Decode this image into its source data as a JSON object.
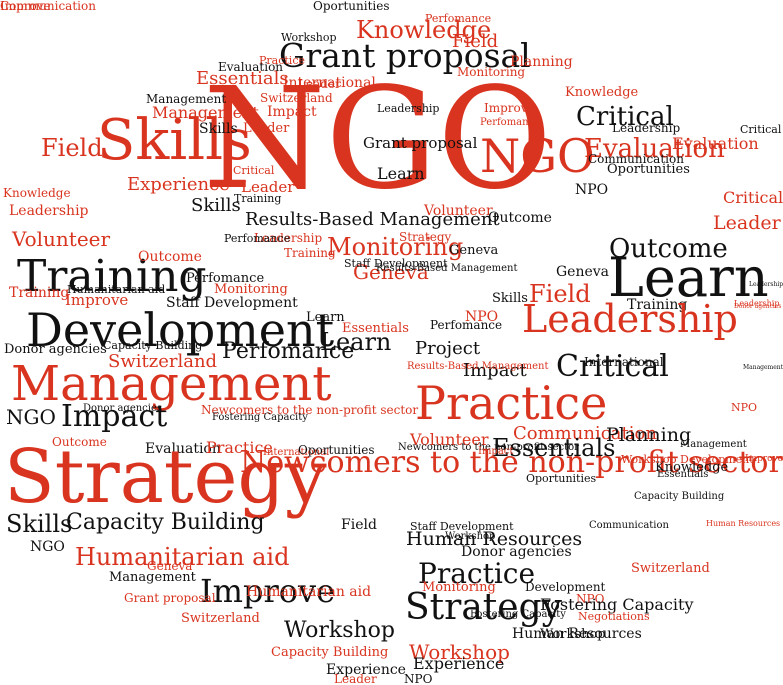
{
  "colors": {
    "red": "#d9341f",
    "black": "#111111",
    "background": "#ffffff"
  },
  "words": [
    {
      "text": "NGO",
      "color": "red"
    },
    {
      "text": "Skills",
      "color": "red"
    },
    {
      "text": "Grant proposal",
      "color": "black"
    },
    {
      "text": "Knowledge",
      "color": "red"
    },
    {
      "text": "Field",
      "color": "red"
    },
    {
      "text": "Essentials",
      "color": "red"
    },
    {
      "text": "International",
      "color": "red"
    },
    {
      "text": "Planning",
      "color": "red"
    },
    {
      "text": "Leader",
      "color": "red"
    },
    {
      "text": "NGO",
      "color": "red"
    },
    {
      "text": "Critical",
      "color": "black"
    },
    {
      "text": "Evaluation",
      "color": "red"
    },
    {
      "text": "Grant proposal",
      "color": "black"
    },
    {
      "text": "Learn",
      "color": "black"
    },
    {
      "text": "Leadership",
      "color": "black"
    },
    {
      "text": "Management",
      "color": "black"
    },
    {
      "text": "Management",
      "color": "red"
    },
    {
      "text": "Impact",
      "color": "red"
    },
    {
      "text": "Field",
      "color": "red"
    },
    {
      "text": "Skills",
      "color": "black"
    },
    {
      "text": "Experience",
      "color": "red"
    },
    {
      "text": "Leader",
      "color": "red"
    },
    {
      "text": "Skills",
      "color": "black"
    },
    {
      "text": "Knowledge",
      "color": "red"
    },
    {
      "text": "Leadership",
      "color": "red"
    },
    {
      "text": "Volunteer",
      "color": "red"
    },
    {
      "text": "Training",
      "color": "black"
    },
    {
      "text": "Outcome",
      "color": "red"
    },
    {
      "text": "Perfomance",
      "color": "black"
    },
    {
      "text": "Monitoring",
      "color": "red"
    },
    {
      "text": "Training",
      "color": "red"
    },
    {
      "text": "Improve",
      "color": "red"
    },
    {
      "text": "Humanitarian aid",
      "color": "black"
    },
    {
      "text": "Staff Development",
      "color": "black"
    },
    {
      "text": "Development",
      "color": "black"
    },
    {
      "text": "Learn",
      "color": "black"
    },
    {
      "text": "Essentials",
      "color": "red"
    },
    {
      "text": "Learn",
      "color": "black"
    },
    {
      "text": "Donor agencies",
      "color": "black"
    },
    {
      "text": "Capacity Building",
      "color": "black"
    },
    {
      "text": "Switzerland",
      "color": "red"
    },
    {
      "text": "Perfomance",
      "color": "black"
    },
    {
      "text": "Management",
      "color": "red"
    },
    {
      "text": "NGO",
      "color": "black"
    },
    {
      "text": "Impact",
      "color": "black"
    },
    {
      "text": "Donor agencies",
      "color": "black"
    },
    {
      "text": "Newcomers to the non-profit sector",
      "color": "red"
    },
    {
      "text": "Fostering Capacity",
      "color": "black"
    },
    {
      "text": "Outcome",
      "color": "red"
    },
    {
      "text": "Evaluation",
      "color": "black"
    },
    {
      "text": "Practice",
      "color": "red"
    },
    {
      "text": "International",
      "color": "red"
    },
    {
      "text": "Oportunities",
      "color": "black"
    },
    {
      "text": "Strategy",
      "color": "red"
    },
    {
      "text": "Skills",
      "color": "black"
    },
    {
      "text": "Capacity Building",
      "color": "black"
    },
    {
      "text": "NGO",
      "color": "black"
    },
    {
      "text": "Humanitarian aid",
      "color": "red"
    },
    {
      "text": "Field",
      "color": "black"
    },
    {
      "text": "Geneva",
      "color": "red"
    },
    {
      "text": "Management",
      "color": "black"
    },
    {
      "text": "Improve",
      "color": "black"
    },
    {
      "text": "Grant proposal",
      "color": "red"
    },
    {
      "text": "Humanitarian aid",
      "color": "red"
    },
    {
      "text": "Switzerland",
      "color": "red"
    },
    {
      "text": "Workshop",
      "color": "black"
    },
    {
      "text": "Capacity Building",
      "color": "red"
    },
    {
      "text": "Experience",
      "color": "black"
    },
    {
      "text": "Leader",
      "color": "red"
    },
    {
      "text": "Oportunities",
      "color": "black"
    },
    {
      "text": "Perfomance",
      "color": "red"
    },
    {
      "text": "Workshop",
      "color": "black"
    },
    {
      "text": "Practice",
      "color": "red"
    },
    {
      "text": "Evaluation",
      "color": "black"
    },
    {
      "text": "Monitoring",
      "color": "red"
    },
    {
      "text": "Leader",
      "color": "red"
    },
    {
      "text": "Improve",
      "color": "red"
    },
    {
      "text": "Switzerland",
      "color": "red"
    },
    {
      "text": "Critical",
      "color": "red"
    },
    {
      "text": "Training",
      "color": "black"
    },
    {
      "text": "Results-Based Management",
      "color": "black"
    },
    {
      "text": "Volunteer",
      "color": "red"
    },
    {
      "text": "Outcome",
      "color": "black"
    },
    {
      "text": "Monitoring",
      "color": "red"
    },
    {
      "text": "Geneva",
      "color": "red"
    },
    {
      "text": "Strategy",
      "color": "red"
    },
    {
      "text": "Geneva",
      "color": "black"
    },
    {
      "text": "Leadership",
      "color": "red"
    },
    {
      "text": "Training",
      "color": "red"
    },
    {
      "text": "Perfomance",
      "color": "black"
    },
    {
      "text": "Results-Based Management",
      "color": "black"
    },
    {
      "text": "Staff Development",
      "color": "black"
    },
    {
      "text": "Critical",
      "color": "black"
    },
    {
      "text": "Evaluation",
      "color": "red"
    },
    {
      "text": "Communication",
      "color": "black"
    },
    {
      "text": "Leadership",
      "color": "black"
    },
    {
      "text": "Knowledge",
      "color": "red"
    },
    {
      "text": "Oportunities",
      "color": "black"
    },
    {
      "text": "NPO",
      "color": "black"
    },
    {
      "text": "Critical",
      "color": "red"
    },
    {
      "text": "Leader",
      "color": "red"
    },
    {
      "text": "Outcome",
      "color": "black"
    },
    {
      "text": "Learn",
      "color": "black"
    },
    {
      "text": "Geneva",
      "color": "black"
    },
    {
      "text": "Field",
      "color": "red"
    },
    {
      "text": "Skills",
      "color": "black"
    },
    {
      "text": "Training",
      "color": "black"
    },
    {
      "text": "Leadership",
      "color": "red"
    },
    {
      "text": "NPO",
      "color": "red"
    },
    {
      "text": "Perfomance",
      "color": "black"
    },
    {
      "text": "Project",
      "color": "black"
    },
    {
      "text": "International",
      "color": "black"
    },
    {
      "text": "Impact",
      "color": "black"
    },
    {
      "text": "Critical",
      "color": "black"
    },
    {
      "text": "Management",
      "color": "black"
    },
    {
      "text": "Practice",
      "color": "red"
    },
    {
      "text": "Volunteer",
      "color": "red"
    },
    {
      "text": "Communication",
      "color": "red"
    },
    {
      "text": "Planning",
      "color": "black"
    },
    {
      "text": "Essentials",
      "color": "black"
    },
    {
      "text": "Newcomers to the non-profit sector",
      "color": "red"
    },
    {
      "text": "Human Resources",
      "color": "black"
    },
    {
      "text": "Donor agencies",
      "color": "black"
    },
    {
      "text": "Practice",
      "color": "black"
    },
    {
      "text": "Development",
      "color": "black"
    },
    {
      "text": "NPO",
      "color": "red"
    },
    {
      "text": "Strategy",
      "color": "black"
    },
    {
      "text": "Fostering Capacity",
      "color": "black"
    },
    {
      "text": "Negotiations",
      "color": "red"
    },
    {
      "text": "Workshop",
      "color": "red"
    },
    {
      "text": "Experience",
      "color": "black"
    },
    {
      "text": "NPO",
      "color": "black"
    },
    {
      "text": "Workshop",
      "color": "black"
    },
    {
      "text": "Human Resources",
      "color": "black"
    },
    {
      "text": "Monitoring",
      "color": "red"
    },
    {
      "text": "Switzerland",
      "color": "red"
    },
    {
      "text": "NPO",
      "color": "red"
    },
    {
      "text": "Improve",
      "color": "red"
    },
    {
      "text": "Knowledge",
      "color": "black"
    },
    {
      "text": "Workshop Development",
      "color": "red"
    },
    {
      "text": "Staff Development",
      "color": "black"
    },
    {
      "text": "Communication",
      "color": "black"
    },
    {
      "text": "Oportunities",
      "color": "black"
    },
    {
      "text": "Newcomers to the non-profit sector",
      "color": "black"
    },
    {
      "text": "Workshop",
      "color": "black"
    },
    {
      "text": "Fostering Capacity",
      "color": "black"
    },
    {
      "text": "Human Resources",
      "color": "red"
    },
    {
      "text": "Impact",
      "color": "red"
    },
    {
      "text": "Leadership",
      "color": "black"
    },
    {
      "text": "Capacity Building",
      "color": "black"
    },
    {
      "text": "Perfomance",
      "color": "red"
    },
    {
      "text": "Management",
      "color": "black"
    },
    {
      "text": "Results-Based Management",
      "color": "red"
    },
    {
      "text": "Essentials",
      "color": "black"
    },
    {
      "text": "Donor agencies",
      "color": "red"
    },
    {
      "text": "Leadership",
      "color": "red"
    },
    {
      "text": "Improve",
      "color": "red"
    },
    {
      "text": "Communication",
      "color": "red"
    }
  ]
}
